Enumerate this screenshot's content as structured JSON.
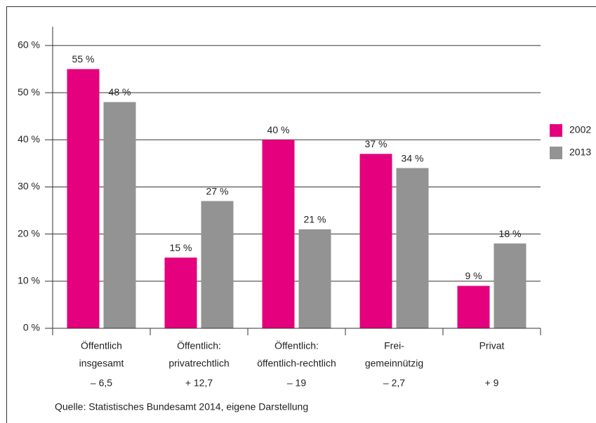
{
  "chart_data": {
    "type": "bar",
    "categories": [
      [
        "Öffentlich",
        "insgesamt"
      ],
      [
        "Öffentlich:",
        "privatrechtlich"
      ],
      [
        "Öffentlich:",
        "öffentlich-rechtlich"
      ],
      [
        "Frei-",
        "gemeinnützig"
      ],
      [
        "Privat"
      ]
    ],
    "changes": [
      "– 6,5",
      "+ 12,7",
      "– 19",
      "– 2,7",
      "+ 9"
    ],
    "series": [
      {
        "name": "2002",
        "color": "#e5007d",
        "values": [
          55,
          15,
          40,
          37,
          9
        ],
        "value_labels": [
          "55 %",
          "15 %",
          "40 %",
          "37 %",
          "9 %"
        ]
      },
      {
        "name": "2013",
        "color": "#939393",
        "values": [
          48,
          27,
          21,
          34,
          18
        ],
        "value_labels": [
          "48 %",
          "27 %",
          "21 %",
          "34 %",
          "18 %"
        ]
      }
    ],
    "ylim": [
      0,
      64
    ],
    "yticks": [
      {
        "value": 0,
        "label": "0 %"
      },
      {
        "value": 10,
        "label": "10 %"
      },
      {
        "value": 20,
        "label": "20 %"
      },
      {
        "value": 30,
        "label": "30 %"
      },
      {
        "value": 40,
        "label": "40 %"
      },
      {
        "value": 50,
        "label": "50 %"
      },
      {
        "value": 60,
        "label": "60 %"
      }
    ],
    "grid": true,
    "legend": "right",
    "source": "Quelle: Statistisches Bundesamt 2014, eigene Darstellung"
  }
}
